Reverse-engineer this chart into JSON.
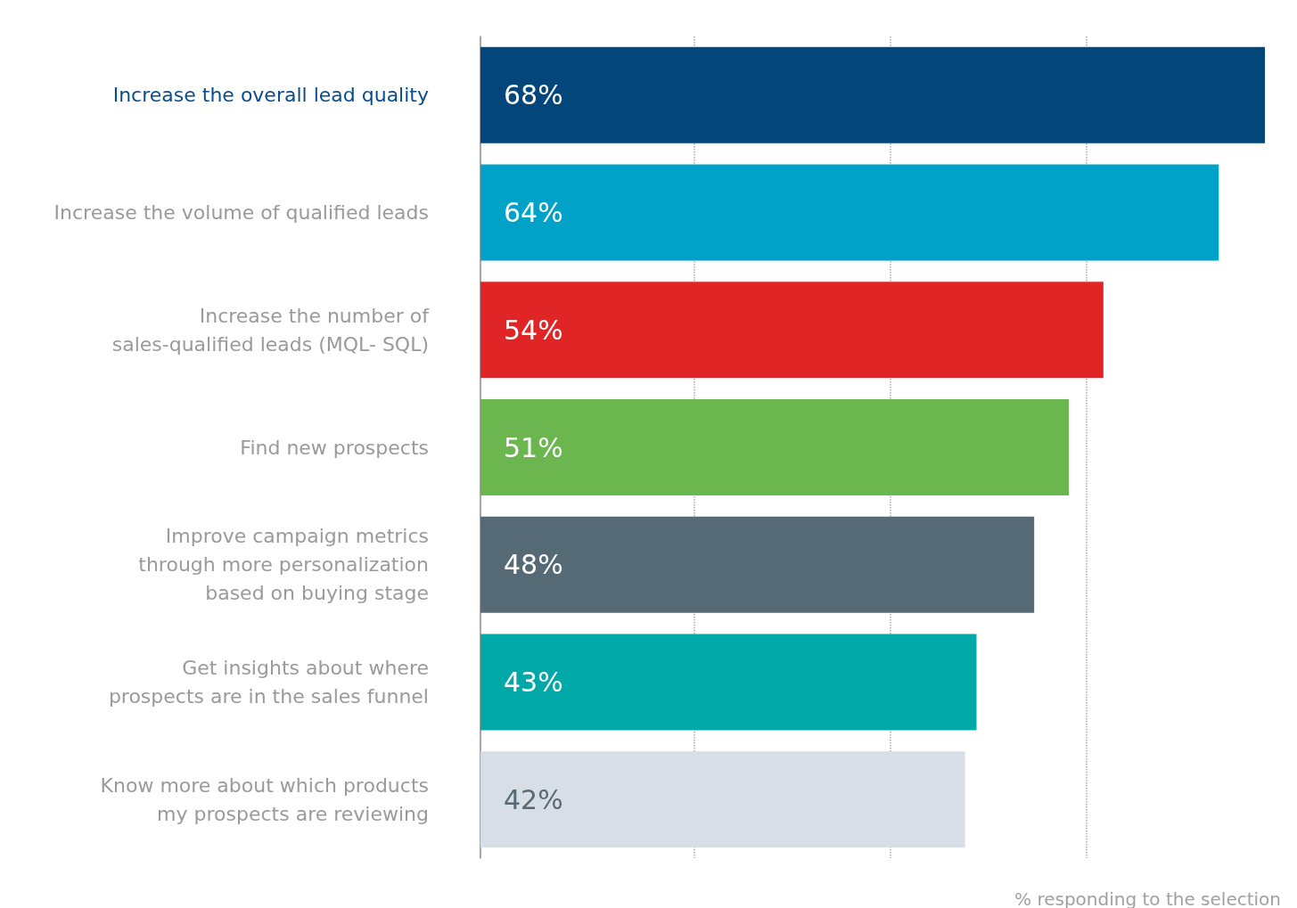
{
  "chart_data": {
    "type": "bar",
    "orientation": "horizontal",
    "categories": [
      "Increase the overall lead quality",
      "Increase the volume of qualified leads",
      "Increase the number of\nsales-qualified leads (MQL- SQL)",
      "Find new prospects",
      "Improve campaign metrics\nthrough more personalization\nbased on buying stage",
      "Get insights about where\nprospects are in the sales funnel",
      "Know more about which products\nmy prospects are reviewing"
    ],
    "values": [
      68,
      64,
      54,
      51,
      48,
      43,
      42
    ],
    "colors": [
      "#02467c",
      "#00a2c8",
      "#df2526",
      "#6bb64f",
      "#566a76",
      "#01a8a8",
      "#d8dee6"
    ],
    "value_labels": [
      "68%",
      "64%",
      "54%",
      "51%",
      "48%",
      "43%",
      "42%"
    ],
    "xlim": [
      0,
      68
    ],
    "xticks": [
      {
        "value": 18.5,
        "label": null
      },
      {
        "value": 35.5,
        "label": null
      },
      {
        "value": 52.5,
        "label": null
      }
    ],
    "grid": "x",
    "tick_labels": "y",
    "xlabel": "% responding to the selection"
  }
}
